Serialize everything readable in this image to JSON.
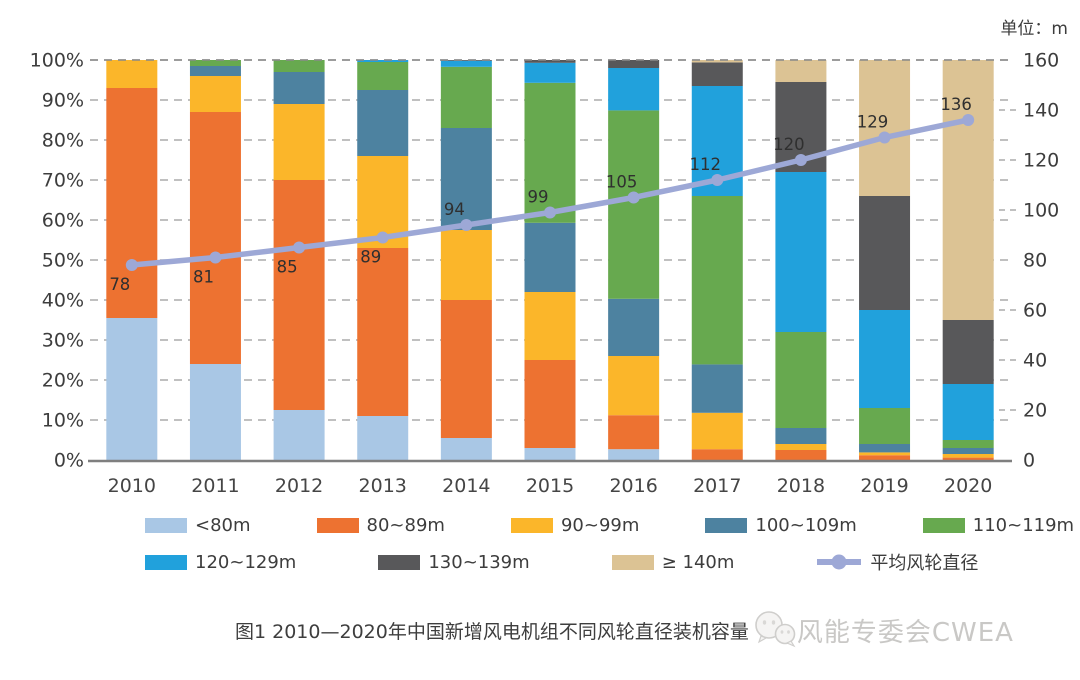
{
  "header": {
    "unit_label": "单位：m"
  },
  "chart_data": {
    "type": "stacked-bar+line",
    "title": "",
    "categories": [
      "2010",
      "2011",
      "2012",
      "2013",
      "2014",
      "2015",
      "2016",
      "2017",
      "2018",
      "2019",
      "2020"
    ],
    "series": [
      {
        "name": "<80m",
        "color": "#A9C7E5",
        "values": [
          35.5,
          24,
          12.5,
          11,
          5.5,
          3,
          2.7,
          0,
          0,
          0,
          0
        ]
      },
      {
        "name": "80~89m",
        "color": "#ED7231",
        "values": [
          57.5,
          63,
          57.5,
          42,
          34.5,
          22,
          8.5,
          2.7,
          2.5,
          1.2,
          0.6
        ]
      },
      {
        "name": "90~99m",
        "color": "#FBB62A",
        "values": [
          7,
          9,
          19,
          23,
          17.5,
          17,
          14.8,
          9.1,
          1.5,
          0.7,
          0.9
        ]
      },
      {
        "name": "100~109m",
        "color": "#4D82A0",
        "values": [
          0,
          2.5,
          8,
          16.5,
          25.5,
          17.3,
          14.3,
          12.1,
          4,
          2.1,
          1.5
        ]
      },
      {
        "name": "110~119m",
        "color": "#67A94F",
        "values": [
          0,
          1.5,
          3,
          7,
          15.3,
          35,
          47.1,
          42.1,
          24,
          9,
          2
        ]
      },
      {
        "name": "120~129m",
        "color": "#21A1DC",
        "values": [
          0,
          0,
          0,
          0.5,
          1.5,
          5,
          10.6,
          27.5,
          40,
          24.5,
          14
        ]
      },
      {
        "name": "130~139m",
        "color": "#58585A",
        "values": [
          0,
          0,
          0,
          0,
          0.2,
          0.7,
          2,
          5.9,
          22.5,
          28.5,
          16
        ]
      },
      {
        "name": "≥ 140m",
        "color": "#DCC394",
        "values": [
          0,
          0,
          0,
          0,
          0,
          0,
          0,
          0.6,
          5.5,
          34,
          65
        ]
      }
    ],
    "line": {
      "name": "平均风轮直径",
      "color": "#9DA8D6",
      "values": [
        78,
        81,
        85,
        89,
        94,
        99,
        105,
        112,
        120,
        129,
        136
      ],
      "label_side": [
        "below",
        "below",
        "below",
        "below",
        "above",
        "above",
        "above",
        "above",
        "above",
        "above",
        "above"
      ]
    },
    "left_axis": {
      "min": 0,
      "max": 100,
      "step": 10,
      "suffix": "%"
    },
    "right_axis": {
      "min": 0,
      "max": 160,
      "step": 20
    },
    "legend_rows": [
      [
        "<80m",
        "80~89m",
        "90~99m",
        "100~109m",
        "110~119m"
      ],
      [
        "120~129m",
        "130~139m",
        "≥ 140m",
        "平均风轮直径"
      ]
    ],
    "grid": "dashed-horizontal",
    "legend_position": "bottom"
  },
  "caption": {
    "text": "图1 2010—2020年中国新增风电机组不同风轮直径装机容量",
    "watermark": "风能专委会CWEA"
  }
}
